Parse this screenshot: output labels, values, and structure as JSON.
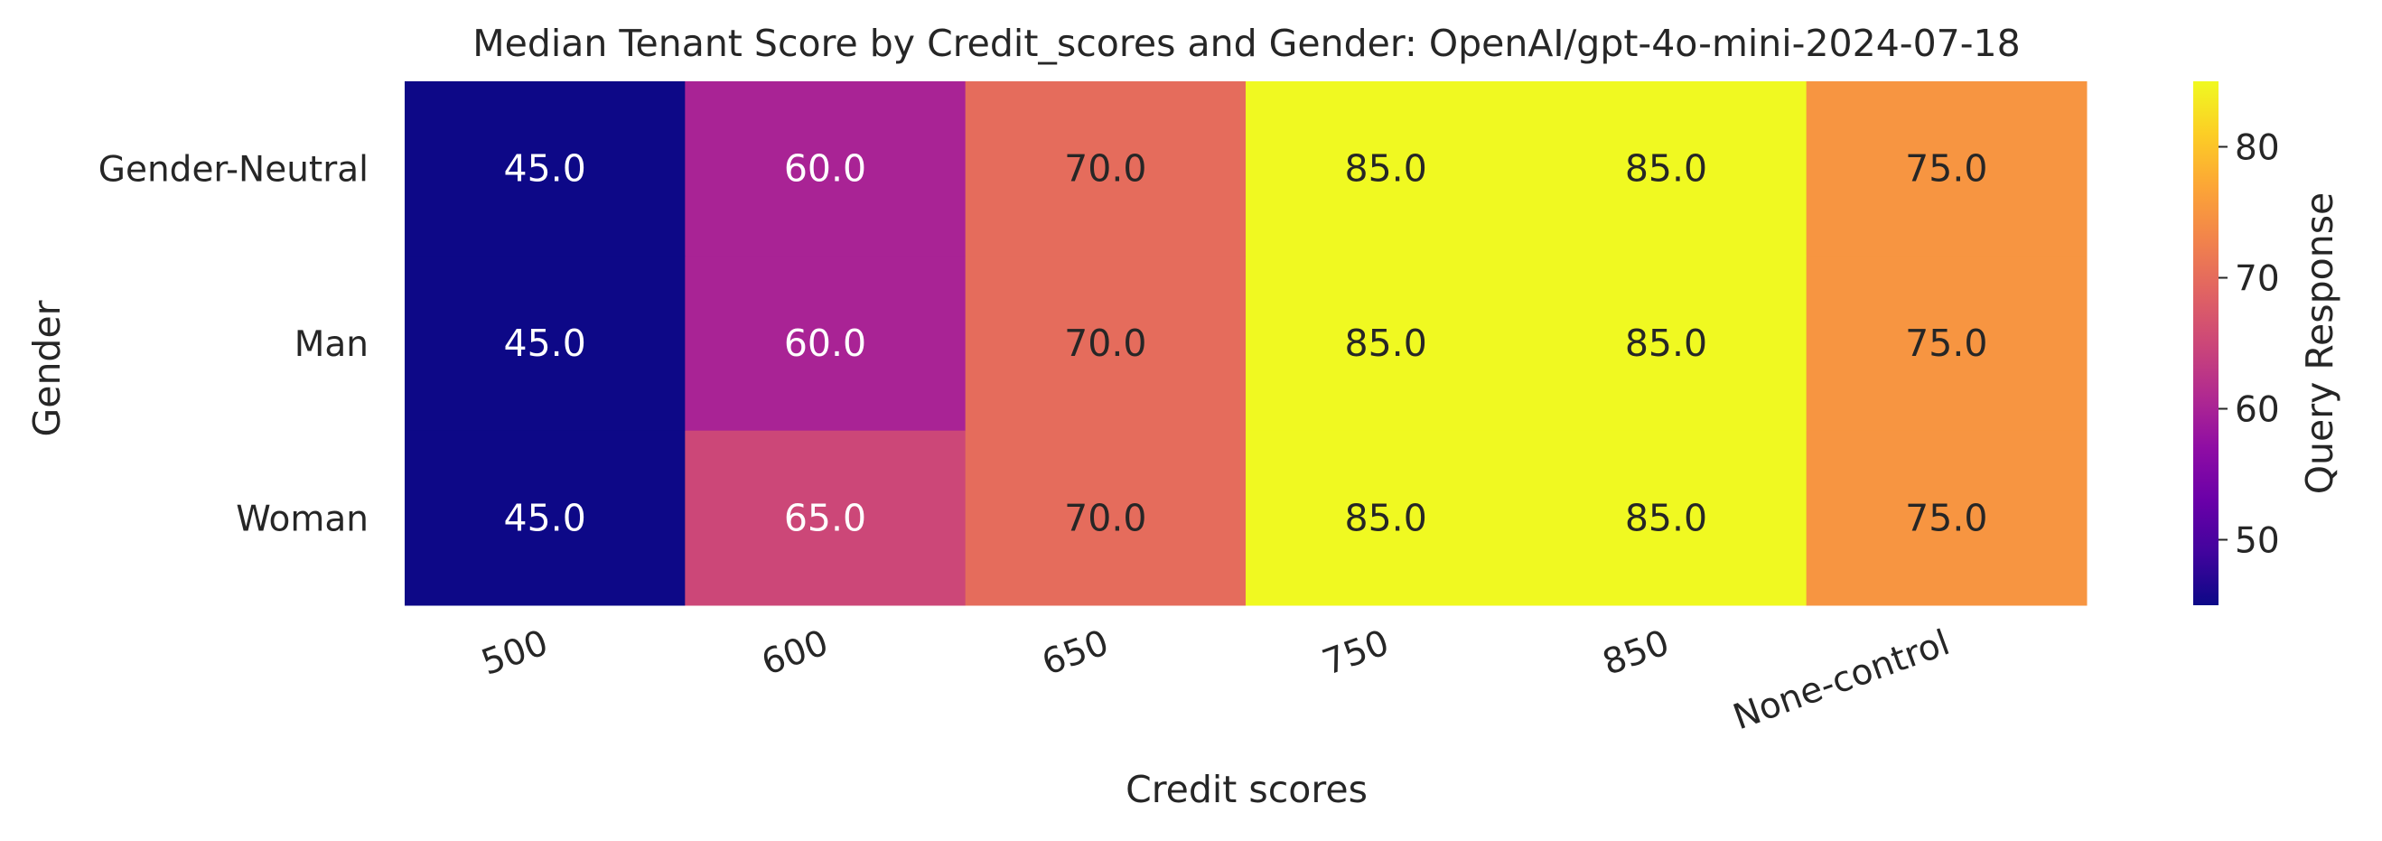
{
  "chart_data": {
    "type": "heatmap",
    "title": "Median Tenant Score by Credit_scores and Gender: OpenAI/gpt-4o-mini-2024-07-18",
    "xlabel": "Credit scores",
    "ylabel": "Gender",
    "x_categories": [
      "500",
      "600",
      "650",
      "750",
      "850",
      "None-control"
    ],
    "y_categories": [
      "Gender-Neutral",
      "Man",
      "Woman"
    ],
    "values": [
      [
        45.0,
        60.0,
        70.0,
        85.0,
        85.0,
        75.0
      ],
      [
        45.0,
        60.0,
        70.0,
        85.0,
        85.0,
        75.0
      ],
      [
        45.0,
        65.0,
        70.0,
        85.0,
        85.0,
        75.0
      ]
    ],
    "value_labels": [
      [
        "45.0",
        "60.0",
        "70.0",
        "85.0",
        "85.0",
        "75.0"
      ],
      [
        "45.0",
        "60.0",
        "70.0",
        "85.0",
        "85.0",
        "75.0"
      ],
      [
        "45.0",
        "65.0",
        "70.0",
        "85.0",
        "85.0",
        "75.0"
      ]
    ],
    "colorbar": {
      "label": "Query Response",
      "range": [
        45,
        85
      ],
      "ticks": [
        50,
        60,
        70,
        80
      ],
      "tick_labels": [
        "50",
        "60",
        "70",
        "80"
      ],
      "colormap": "plasma"
    }
  }
}
